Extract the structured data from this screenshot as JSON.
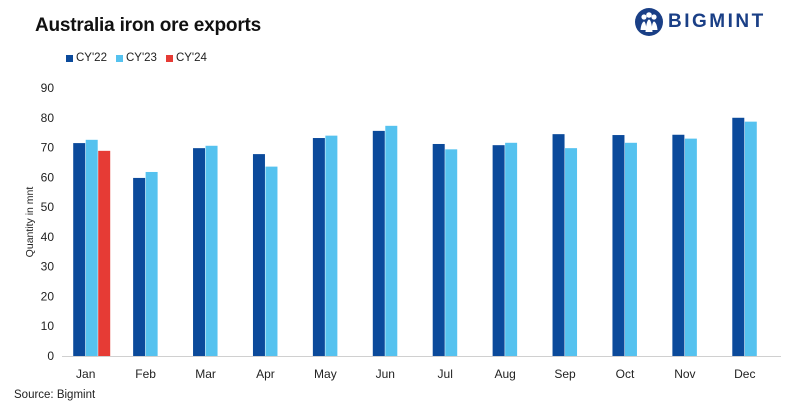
{
  "header": {
    "title": "Australia iron ore exports"
  },
  "logo": {
    "text": "BIGMINT",
    "icon": "bigmint-people-logo-icon",
    "color": "#1a3f86"
  },
  "source": "Source: Bigmint",
  "chart_data": {
    "type": "bar",
    "title": "Australia iron ore exports",
    "xlabel": "",
    "ylabel": "Quantity in mnt",
    "ylim": [
      0,
      90
    ],
    "yticks": [
      0,
      10,
      20,
      30,
      40,
      50,
      60,
      70,
      80,
      90
    ],
    "grid": false,
    "legend_position": "top-left",
    "categories": [
      "Jan",
      "Feb",
      "Mar",
      "Apr",
      "May",
      "Jun",
      "Jul",
      "Aug",
      "Sep",
      "Oct",
      "Nov",
      "Dec"
    ],
    "series": [
      {
        "name": "CY'22",
        "color": "#0b4a9b",
        "values": [
          71.5,
          59.8,
          69.8,
          67.8,
          73.2,
          75.6,
          71.2,
          70.8,
          74.5,
          74.2,
          74.3,
          80.0
        ]
      },
      {
        "name": "CY'23",
        "color": "#55c2ef",
        "values": [
          72.6,
          61.8,
          70.6,
          63.6,
          74.0,
          77.3,
          69.4,
          71.6,
          69.8,
          71.6,
          73.0,
          78.7
        ]
      },
      {
        "name": "CY'24",
        "color": "#e63b35",
        "values": [
          68.9,
          null,
          null,
          null,
          null,
          null,
          null,
          null,
          null,
          null,
          null,
          null
        ]
      }
    ]
  }
}
